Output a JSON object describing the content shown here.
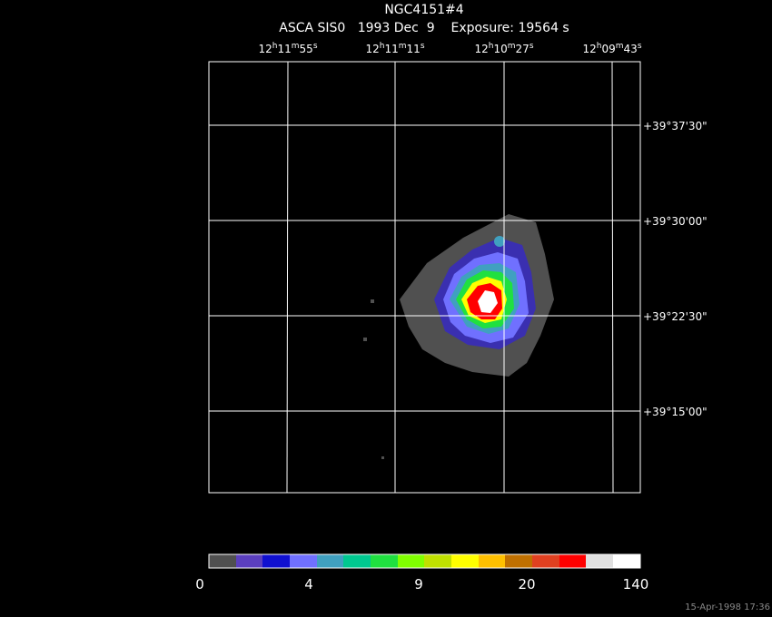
{
  "header": {
    "title": "NGC4151#4",
    "subtitle": "ASCA SIS0   1993 Dec  9    Exposure: 19564 s"
  },
  "ra_labels": [
    [
      "12",
      "h",
      "11",
      "m",
      "55",
      "s"
    ],
    [
      "12",
      "h",
      "11",
      "m",
      "11",
      "s"
    ],
    [
      "12",
      "h",
      "10",
      "m",
      "27",
      "s"
    ],
    [
      "12",
      "h",
      "09",
      "m",
      "43",
      "s"
    ]
  ],
  "dec_labels": [
    "+39°37'30\"",
    "+39°30'00\"",
    "+39°22'30\"",
    "+39°15'00\""
  ],
  "colorbar": {
    "labels": [
      "0",
      "4",
      "9",
      "20",
      "140"
    ]
  },
  "footer": {
    "timestamp": "15-Apr-1998 17:36"
  }
}
